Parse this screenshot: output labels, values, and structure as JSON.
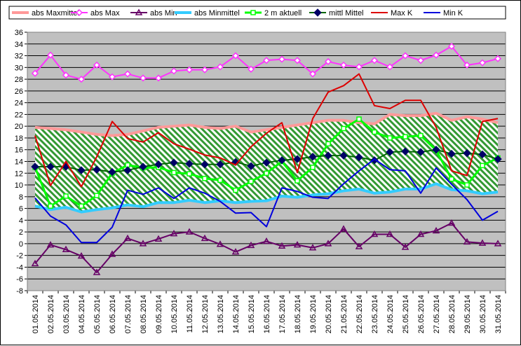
{
  "chart_data": {
    "type": "line",
    "title": "",
    "xlabel": "",
    "ylabel": "",
    "ylim": [
      -8,
      36
    ],
    "ytick_step": 2,
    "grid": true,
    "legend_position": "top",
    "plot_background": "#c0c0c0",
    "categories": [
      "01.05.2014",
      "02.05.2014",
      "03.05.2014",
      "04.05.2014",
      "05.05.2014",
      "06.05.2014",
      "07.05.2014",
      "08.05.2014",
      "09.05.2014",
      "10.05.2014",
      "11.05.2014",
      "12.05.2014",
      "13.05.2014",
      "14.05.2014",
      "15.05.2014",
      "16.05.2014",
      "17.05.2014",
      "18.05.2014",
      "19.05.2014",
      "20.05.2014",
      "21.05.2014",
      "22.05.2014",
      "23.05.2014",
      "24.05.2014",
      "25.05.2014",
      "26.05.2014",
      "27.05.2014",
      "28.05.2014",
      "29.05.2014",
      "30.05.2014",
      "31.05.2014"
    ],
    "band": {
      "upper_series": "abs Maxmittel",
      "lower_series": "abs Minmittel",
      "fill": "#339933",
      "pattern": "diagonal-hatch"
    },
    "series": [
      {
        "name": "abs Maxmittel",
        "color": "#ff9999",
        "width": 4,
        "marker": "none",
        "values": [
          19.8,
          19.6,
          19.4,
          19.0,
          18.6,
          18.4,
          18.6,
          19.2,
          19.8,
          20.0,
          20.2,
          19.8,
          19.6,
          20.0,
          19.0,
          19.4,
          19.8,
          20.2,
          20.6,
          21.0,
          21.0,
          20.6,
          20.4,
          22.0,
          21.8,
          21.8,
          22.2,
          21.0,
          21.6,
          21.2,
          20.6
        ]
      },
      {
        "name": "abs Max",
        "color": "#ff33ff",
        "width": 2,
        "marker": "open-diamond",
        "values": [
          29.0,
          32.1,
          28.7,
          28.0,
          30.4,
          28.4,
          28.9,
          28.2,
          28.2,
          29.4,
          29.6,
          29.6,
          30.1,
          32.0,
          29.7,
          31.2,
          31.4,
          31.2,
          28.9,
          31.0,
          30.4,
          30.1,
          31.2,
          30.1,
          32.0,
          31.2,
          32.1,
          33.6,
          30.4,
          30.8,
          31.5
        ]
      },
      {
        "name": "abs Min",
        "color": "#660066",
        "width": 2,
        "marker": "open-triangle",
        "values": [
          -3.4,
          -0.2,
          -1.0,
          -2.1,
          -4.9,
          -1.8,
          0.9,
          0.0,
          0.8,
          1.7,
          2.0,
          0.9,
          -0.1,
          -1.4,
          -0.3,
          0.4,
          -0.4,
          -0.2,
          -0.7,
          0.0,
          2.5,
          -0.5,
          1.6,
          1.6,
          -0.6,
          1.6,
          2.2,
          3.5,
          0.3,
          0.1,
          0.0
        ]
      },
      {
        "name": "abs Minmittel",
        "color": "#33ccff",
        "width": 4,
        "marker": "none",
        "values": [
          6.4,
          5.8,
          6.2,
          5.4,
          5.8,
          6.1,
          6.6,
          6.3,
          7.0,
          7.0,
          7.4,
          7.0,
          7.3,
          7.0,
          7.2,
          7.3,
          8.1,
          7.9,
          8.3,
          8.5,
          9.0,
          9.3,
          8.6,
          8.8,
          9.3,
          9.3,
          10.2,
          9.2,
          9.0,
          8.5,
          8.8
        ]
      },
      {
        "name": "2 m aktuell",
        "color": "#00ff00",
        "width": 3,
        "marker": "open-square",
        "values": [
          13.0,
          6.4,
          8.1,
          6.4,
          8.2,
          12.0,
          13.4,
          12.9,
          13.0,
          12.1,
          11.9,
          11.1,
          10.8,
          9.1,
          10.6,
          12.0,
          14.0,
          10.7,
          13.0,
          17.0,
          19.6,
          21.2,
          19.0,
          18.0,
          18.2,
          18.4,
          15.9,
          11.0,
          10.0,
          13.3,
          14.6
        ]
      },
      {
        "name": "mittl Mittel",
        "color": "#006600",
        "width": 2,
        "marker": "filled-diamond",
        "values": [
          13.1,
          13.1,
          13.1,
          12.5,
          12.6,
          12.2,
          12.5,
          13.1,
          13.5,
          13.8,
          13.6,
          13.5,
          13.5,
          13.9,
          13.2,
          13.8,
          14.2,
          14.4,
          14.8,
          15.0,
          15.0,
          14.7,
          14.2,
          15.6,
          15.7,
          15.6,
          16.0,
          15.3,
          15.4,
          15.2,
          14.4
        ]
      },
      {
        "name": "Max K",
        "color": "#dd0000",
        "width": 2,
        "marker": "none",
        "values": [
          18.4,
          9.9,
          14.0,
          9.7,
          14.8,
          20.8,
          17.9,
          17.3,
          18.9,
          17.0,
          16.1,
          15.1,
          14.6,
          13.4,
          16.5,
          18.8,
          20.6,
          12.1,
          21.3,
          25.8,
          26.9,
          28.9,
          23.5,
          23.0,
          24.4,
          24.4,
          19.8,
          12.4,
          11.6,
          20.8,
          21.3
        ]
      },
      {
        "name": "Min K",
        "color": "#0000dd",
        "width": 2,
        "marker": "none",
        "values": [
          7.8,
          4.7,
          3.2,
          0.2,
          0.2,
          2.8,
          9.1,
          8.4,
          9.5,
          7.7,
          9.5,
          8.6,
          7.2,
          5.2,
          5.3,
          2.9,
          9.5,
          8.9,
          7.9,
          7.7,
          10.2,
          12.4,
          14.4,
          12.6,
          12.4,
          8.6,
          12.9,
          10.1,
          7.5,
          4.0,
          5.5
        ]
      }
    ]
  }
}
